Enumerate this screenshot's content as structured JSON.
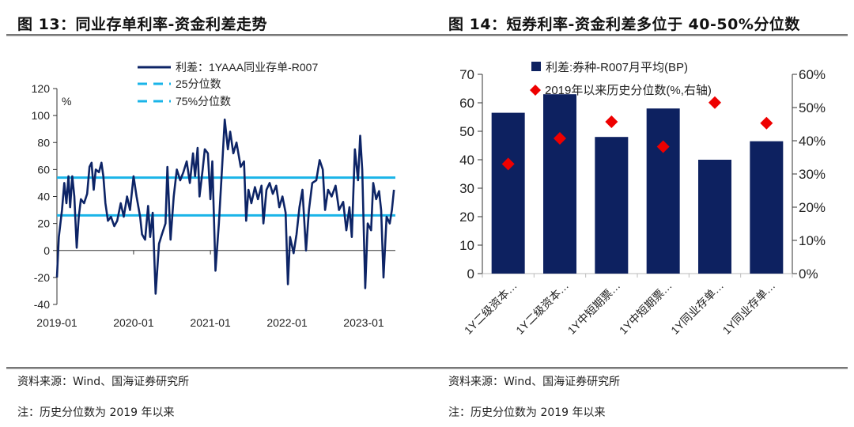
{
  "left": {
    "title": "图 13：同业存单利率-资金利差走势",
    "source": "资料来源：Wind、国海证券研究所",
    "note": "注：历史分位数为 2019 年以来"
  },
  "right": {
    "title": "图 14：短券利率-资金利差多位于 40-50%分位数",
    "source": "资料来源：Wind、国海证券研究所",
    "note": "注：历史分位数为 2019 年以来"
  },
  "chart_data": [
    {
      "type": "line",
      "ylabel": "%",
      "ylim": [
        -40,
        120
      ],
      "yticks": [
        "-40",
        "-20",
        "0",
        "20",
        "40",
        "60",
        "80",
        "100",
        "120"
      ],
      "xticks": [
        "2019-01",
        "2020-01",
        "2021-01",
        "2022-01",
        "2023-01"
      ],
      "legend_position": "top",
      "grid": false,
      "colors": {
        "series": "#0d2466",
        "percentile": "#1ab4e8"
      },
      "series": [
        {
          "name": "利差：1YAAA同业存单-R007",
          "points": [
            [
              "2019-01-01",
              -20
            ],
            [
              "2019-01-10",
              10
            ],
            [
              "2019-01-25",
              30
            ],
            [
              "2019-02-05",
              50
            ],
            [
              "2019-02-15",
              35
            ],
            [
              "2019-02-25",
              55
            ],
            [
              "2019-03-05",
              32
            ],
            [
              "2019-03-15",
              55
            ],
            [
              "2019-03-25",
              40
            ],
            [
              "2019-04-05",
              2
            ],
            [
              "2019-04-15",
              25
            ],
            [
              "2019-04-25",
              38
            ],
            [
              "2019-05-10",
              35
            ],
            [
              "2019-05-25",
              42
            ],
            [
              "2019-06-05",
              62
            ],
            [
              "2019-06-15",
              65
            ],
            [
              "2019-06-25",
              45
            ],
            [
              "2019-07-05",
              60
            ],
            [
              "2019-07-20",
              58
            ],
            [
              "2019-08-01",
              65
            ],
            [
              "2019-08-10",
              55
            ],
            [
              "2019-08-20",
              35
            ],
            [
              "2019-09-01",
              22
            ],
            [
              "2019-09-15",
              25
            ],
            [
              "2019-10-01",
              18
            ],
            [
              "2019-10-15",
              22
            ],
            [
              "2019-11-01",
              35
            ],
            [
              "2019-11-15",
              25
            ],
            [
              "2019-12-01",
              40
            ],
            [
              "2019-12-15",
              30
            ],
            [
              "2020-01-01",
              55
            ],
            [
              "2020-01-15",
              40
            ],
            [
              "2020-02-01",
              25
            ],
            [
              "2020-02-10",
              12
            ],
            [
              "2020-02-25",
              8
            ],
            [
              "2020-03-10",
              33
            ],
            [
              "2020-03-20",
              10
            ],
            [
              "2020-04-01",
              28
            ],
            [
              "2020-04-15",
              -32
            ],
            [
              "2020-05-01",
              5
            ],
            [
              "2020-05-15",
              12
            ],
            [
              "2020-06-01",
              20
            ],
            [
              "2020-06-10",
              62
            ],
            [
              "2020-06-25",
              8
            ],
            [
              "2020-07-10",
              40
            ],
            [
              "2020-07-25",
              60
            ],
            [
              "2020-08-10",
              52
            ],
            [
              "2020-08-25",
              58
            ],
            [
              "2020-09-10",
              66
            ],
            [
              "2020-09-25",
              50
            ],
            [
              "2020-10-10",
              72
            ],
            [
              "2020-10-20",
              55
            ],
            [
              "2020-11-01",
              76
            ],
            [
              "2020-11-10",
              40
            ],
            [
              "2020-11-25",
              60
            ],
            [
              "2020-12-05",
              75
            ],
            [
              "2020-12-20",
              72
            ],
            [
              "2021-01-01",
              38
            ],
            [
              "2021-01-10",
              66
            ],
            [
              "2021-01-25",
              -15
            ],
            [
              "2021-02-10",
              20
            ],
            [
              "2021-02-25",
              60
            ],
            [
              "2021-03-10",
              97
            ],
            [
              "2021-03-25",
              75
            ],
            [
              "2021-04-05",
              88
            ],
            [
              "2021-04-20",
              72
            ],
            [
              "2021-05-05",
              80
            ],
            [
              "2021-05-25",
              62
            ],
            [
              "2021-06-10",
              66
            ],
            [
              "2021-06-20",
              22
            ],
            [
              "2021-07-01",
              45
            ],
            [
              "2021-07-15",
              35
            ],
            [
              "2021-08-01",
              47
            ],
            [
              "2021-08-15",
              38
            ],
            [
              "2021-09-01",
              48
            ],
            [
              "2021-09-10",
              20
            ],
            [
              "2021-09-25",
              45
            ],
            [
              "2021-10-10",
              50
            ],
            [
              "2021-10-25",
              42
            ],
            [
              "2021-11-10",
              48
            ],
            [
              "2021-11-25",
              32
            ],
            [
              "2021-12-10",
              40
            ],
            [
              "2021-12-25",
              28
            ],
            [
              "2022-01-05",
              -25
            ],
            [
              "2022-01-15",
              10
            ],
            [
              "2022-02-01",
              -2
            ],
            [
              "2022-02-15",
              12
            ],
            [
              "2022-03-01",
              32
            ],
            [
              "2022-03-15",
              45
            ],
            [
              "2022-04-01",
              0
            ],
            [
              "2022-04-15",
              30
            ],
            [
              "2022-05-01",
              50
            ],
            [
              "2022-05-20",
              52
            ],
            [
              "2022-06-05",
              67
            ],
            [
              "2022-06-20",
              60
            ],
            [
              "2022-07-01",
              30
            ],
            [
              "2022-07-15",
              45
            ],
            [
              "2022-08-01",
              40
            ],
            [
              "2022-08-20",
              48
            ],
            [
              "2022-09-05",
              30
            ],
            [
              "2022-09-25",
              36
            ],
            [
              "2022-10-10",
              15
            ],
            [
              "2022-10-25",
              32
            ],
            [
              "2022-11-05",
              10
            ],
            [
              "2022-11-20",
              75
            ],
            [
              "2022-12-05",
              52
            ],
            [
              "2022-12-15",
              85
            ],
            [
              "2022-12-25",
              60
            ],
            [
              "2023-01-08",
              -28
            ],
            [
              "2023-01-20",
              20
            ],
            [
              "2023-02-05",
              15
            ],
            [
              "2023-02-15",
              50
            ],
            [
              "2023-03-01",
              38
            ],
            [
              "2023-03-15",
              44
            ],
            [
              "2023-03-25",
              30
            ],
            [
              "2023-04-05",
              -20
            ],
            [
              "2023-04-20",
              25
            ],
            [
              "2023-05-05",
              20
            ],
            [
              "2023-05-15",
              30
            ],
            [
              "2023-05-25",
              45
            ]
          ]
        },
        {
          "name": "25分位数",
          "value": 26
        },
        {
          "name": "75%分位数",
          "value": 54
        }
      ]
    },
    {
      "type": "bar",
      "categories": [
        "1Y二级资本…",
        "1Y二级资本…",
        "1Y中短期票…",
        "1Y中短期票…",
        "1Y同业存单…",
        "1Y同业存单…"
      ],
      "ylim": [
        0,
        70
      ],
      "yticks": [
        "0",
        "10",
        "20",
        "30",
        "40",
        "50",
        "60",
        "70"
      ],
      "y2lim": [
        0,
        60
      ],
      "y2ticks": [
        "0%",
        "10%",
        "20%",
        "30%",
        "40%",
        "50%",
        "60%"
      ],
      "legend_position": "top",
      "grid": false,
      "colors": {
        "bars": "#0d2160",
        "markers": "#ee0000"
      },
      "series": [
        {
          "name": "利差:券种-R007月平均(BP)",
          "values": [
            56.5,
            63,
            48,
            58,
            40,
            46.5
          ]
        },
        {
          "name": "2019年以来历史分位数(%,右轴)",
          "axis": "right",
          "values": [
            33.0,
            40.7,
            45.7,
            38.2,
            51.5,
            45.3
          ]
        }
      ]
    }
  ]
}
